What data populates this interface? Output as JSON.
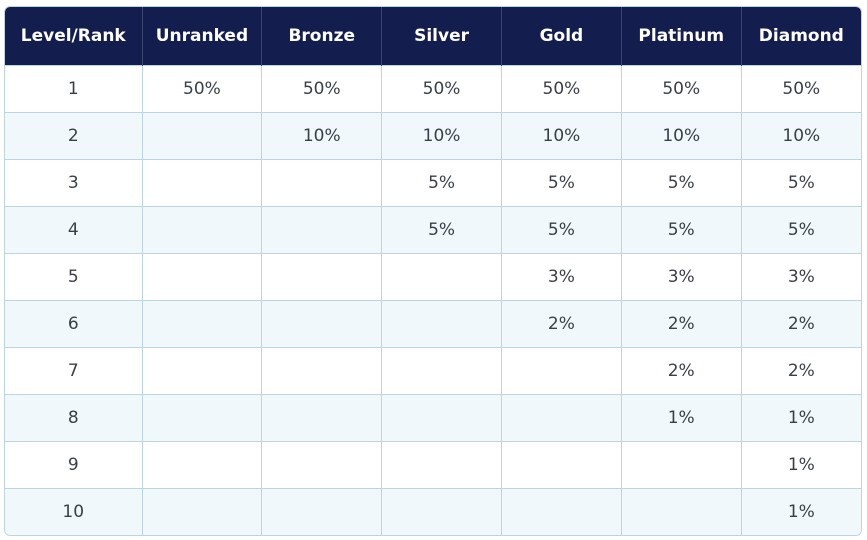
{
  "table": {
    "headers": [
      "Level/Rank",
      "Unranked",
      "Bronze",
      "Silver",
      "Gold",
      "Platinum",
      "Diamond"
    ],
    "rows": [
      [
        "1",
        "50%",
        "50%",
        "50%",
        "50%",
        "50%",
        "50%"
      ],
      [
        "2",
        "",
        "10%",
        "10%",
        "10%",
        "10%",
        "10%"
      ],
      [
        "3",
        "",
        "",
        "5%",
        "5%",
        "5%",
        "5%"
      ],
      [
        "4",
        "",
        "",
        "5%",
        "5%",
        "5%",
        "5%"
      ],
      [
        "5",
        "",
        "",
        "",
        "3%",
        "3%",
        "3%"
      ],
      [
        "6",
        "",
        "",
        "",
        "2%",
        "2%",
        "2%"
      ],
      [
        "7",
        "",
        "",
        "",
        "",
        "2%",
        "2%"
      ],
      [
        "8",
        "",
        "",
        "",
        "",
        "1%",
        "1%"
      ],
      [
        "9",
        "",
        "",
        "",
        "",
        "",
        "1%"
      ],
      [
        "10",
        "",
        "",
        "",
        "",
        "",
        "1%"
      ]
    ]
  },
  "colors": {
    "header_bg": "#141e4e",
    "header_text": "#ffffff",
    "row_alt_bg": "#f1f8fb",
    "border": "#bcd6df",
    "cell_text": "#3a3f47"
  }
}
